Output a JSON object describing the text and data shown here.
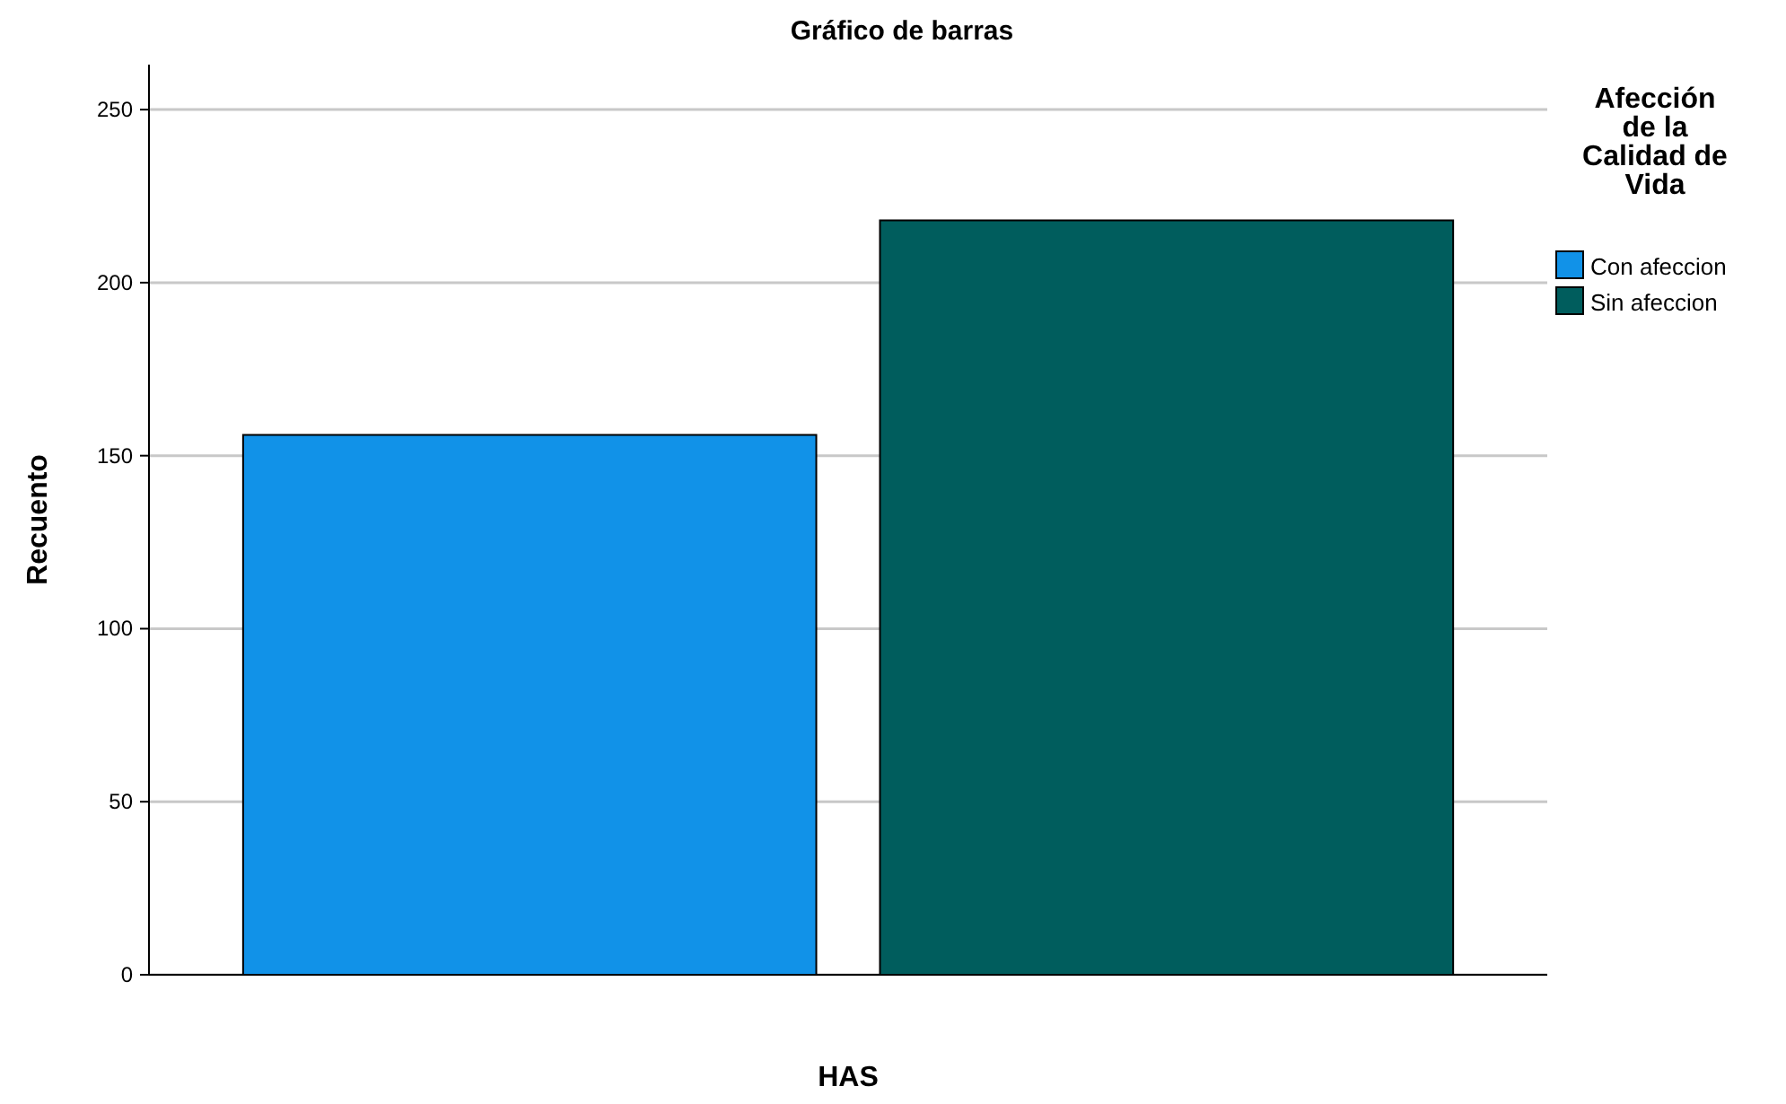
{
  "chart_data": {
    "type": "bar",
    "title": "Gráfico de barras",
    "xlabel": "HAS",
    "ylabel": "Recuento",
    "legend_title": "Afección de la Calidad de Vida",
    "categories": [
      null
    ],
    "series": [
      {
        "name": "Con afeccion",
        "color": "#1192e8",
        "values": [
          156
        ]
      },
      {
        "name": "Sin afeccion",
        "color": "#005d5d",
        "values": [
          218
        ]
      }
    ],
    "ylim": [
      0,
      263
    ],
    "yticks": [
      0,
      50,
      100,
      150,
      200,
      250
    ],
    "grid": "y",
    "legend": "top right"
  }
}
